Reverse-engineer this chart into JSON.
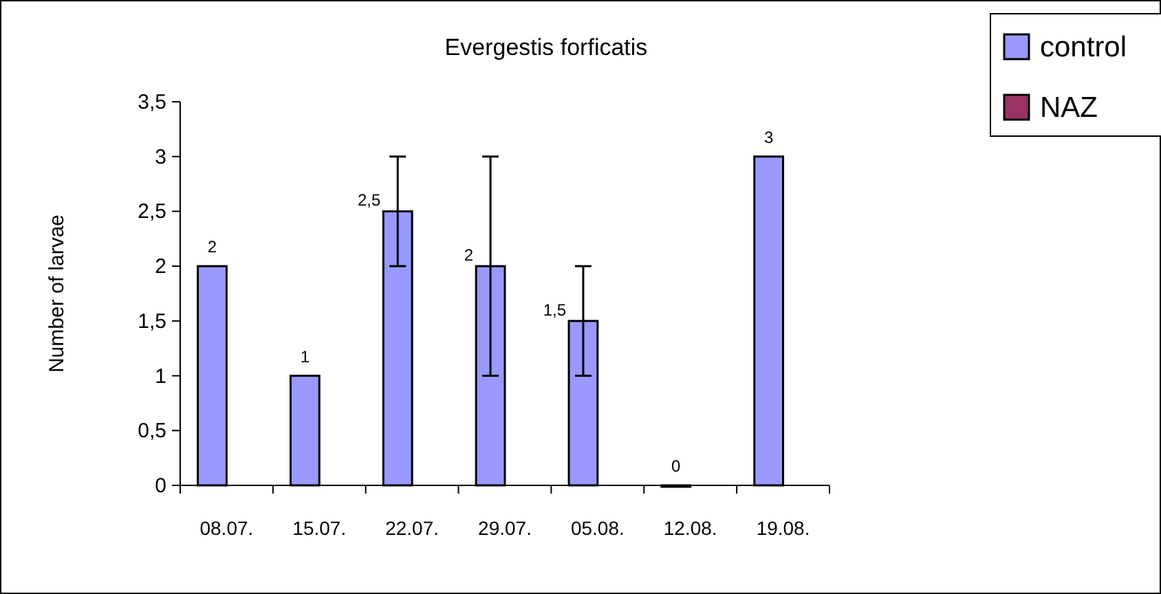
{
  "chart_data": {
    "type": "bar",
    "title": "Evergestis forficatis",
    "ylabel": "Number of larvae",
    "categories": [
      "08.07.",
      "15.07.",
      "22.07.",
      "29.07.",
      "05.08.",
      "12.08.",
      "19.08."
    ],
    "series": [
      {
        "name": "control",
        "color": "#9999ff",
        "values": [
          2,
          1,
          2.5,
          2,
          1.5,
          0,
          3
        ],
        "errors": [
          null,
          null,
          0.5,
          1,
          0.5,
          null,
          null
        ],
        "value_labels": [
          "2",
          "1",
          "2,5",
          "2",
          "1,5",
          "0",
          "3"
        ]
      },
      {
        "name": "NAZ",
        "color": "#993366",
        "values": [
          null,
          null,
          null,
          null,
          null,
          null,
          null
        ]
      }
    ],
    "ylim": [
      0,
      3.5
    ],
    "yticks": [
      0,
      {
        "value": 0.5,
        "label": "0,5"
      },
      1,
      {
        "value": 1.5,
        "label": "1,5"
      },
      2,
      {
        "value": 2.5,
        "label": "2,5"
      },
      3,
      {
        "value": 3.5,
        "label": "3,5"
      }
    ],
    "grid": false,
    "legend": "top right"
  }
}
